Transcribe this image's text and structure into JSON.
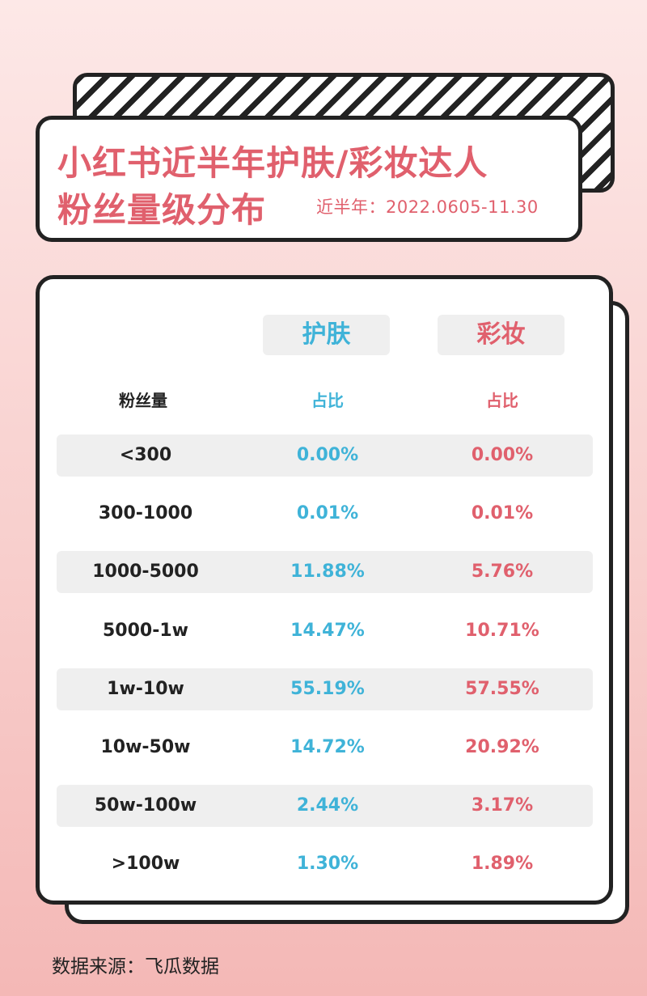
{
  "title": {
    "line1": "小红书近半年护肤/彩妆达人",
    "line2": "粉丝量级分布",
    "period": "近半年：2022.0605-11.30"
  },
  "colors": {
    "skincare": "#3fb3d8",
    "makeup": "#e0606d",
    "text": "#222222"
  },
  "chart_data": {
    "type": "table",
    "columns": [
      "粉丝量",
      "护肤",
      "彩妆"
    ],
    "sub_header": {
      "fans": "粉丝量",
      "skincare": "占比",
      "makeup": "占比"
    },
    "headers": {
      "skincare": "护肤",
      "makeup": "彩妆"
    },
    "rows": [
      {
        "range": "<300",
        "skincare": "0.00%",
        "makeup": "0.00%"
      },
      {
        "range": "300-1000",
        "skincare": "0.01%",
        "makeup": "0.01%"
      },
      {
        "range": "1000-5000",
        "skincare": "11.88%",
        "makeup": "5.76%"
      },
      {
        "range": "5000-1w",
        "skincare": "14.47%",
        "makeup": "10.71%"
      },
      {
        "range": "1w-10w",
        "skincare": "55.19%",
        "makeup": "57.55%"
      },
      {
        "range": "10w-50w",
        "skincare": "14.72%",
        "makeup": "20.92%"
      },
      {
        "range": "50w-100w",
        "skincare": "2.44%",
        "makeup": "3.17%"
      },
      {
        "range": ">100w",
        "skincare": "1.30%",
        "makeup": "1.89%"
      }
    ]
  },
  "source": "数据来源：飞瓜数据"
}
